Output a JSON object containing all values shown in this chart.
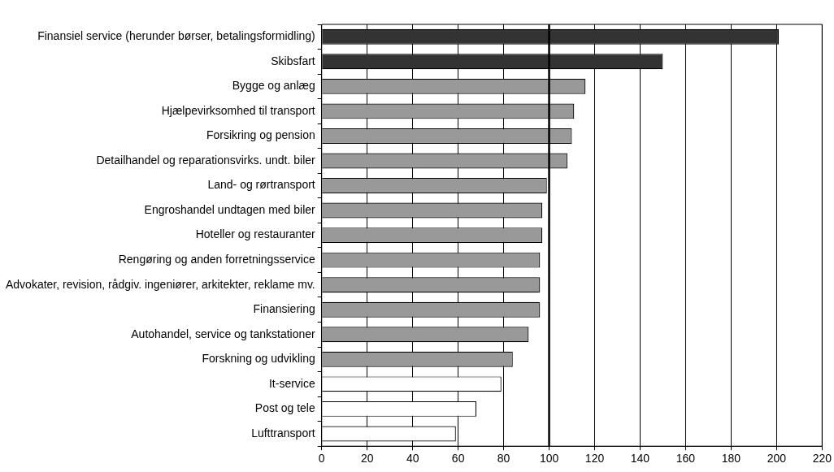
{
  "chart_data": {
    "type": "bar",
    "orientation": "horizontal",
    "categories": [
      "Finansiel service (herunder børser, betalingsformidling)",
      "Skibsfart",
      "Bygge og anlæg",
      "Hjælpevirksomhed til transport",
      "Forsikring og pension",
      "Detailhandel og reparationsvirks. undt. biler",
      "Land- og rørtransport",
      "Engroshandel undtagen med biler",
      "Hoteller og restauranter",
      "Rengøring og anden forretningsservice",
      "Advokater, revision, rådgiv. ingeniører, arkitekter, reklame mv.",
      "Finansiering",
      "Autohandel, service og tankstationer",
      "Forskning og udvikling",
      "It-service",
      "Post og tele",
      "Lufttransport"
    ],
    "values": [
      201,
      150,
      116,
      111,
      110,
      108,
      99,
      97,
      97,
      96,
      96,
      96,
      91,
      84,
      79,
      68,
      59
    ],
    "colors": [
      "#333333",
      "#333333",
      "#999999",
      "#999999",
      "#999999",
      "#999999",
      "#999999",
      "#999999",
      "#999999",
      "#999999",
      "#999999",
      "#999999",
      "#999999",
      "#999999",
      "#ffffff",
      "#ffffff",
      "#ffffff"
    ],
    "xlim": [
      0,
      220
    ],
    "xticks": [
      0,
      20,
      40,
      60,
      80,
      100,
      120,
      140,
      160,
      180,
      200,
      220
    ],
    "grid": "x",
    "legend": false,
    "ref_lines": [
      {
        "axis": "x",
        "value": 100,
        "color": "#000000"
      }
    ]
  }
}
